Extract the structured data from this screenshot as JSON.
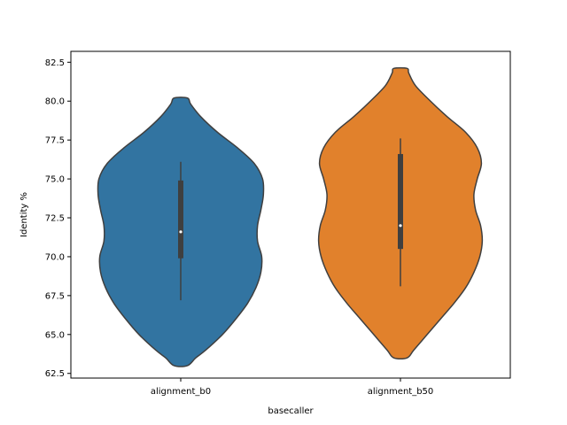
{
  "chart_data": {
    "type": "violin",
    "title": "",
    "xlabel": "basecaller",
    "ylabel": "Identity %",
    "ylim": [
      62.2,
      83.2
    ],
    "yticks": [
      62.5,
      65.0,
      67.5,
      70.0,
      72.5,
      75.0,
      77.5,
      80.0,
      82.5
    ],
    "ytick_labels": [
      "62.5",
      "65.0",
      "67.5",
      "70.0",
      "72.5",
      "75.0",
      "77.5",
      "80.0",
      "82.5"
    ],
    "categories": [
      "alignment_b0",
      "alignment_b50"
    ],
    "grid": false,
    "legend": "none",
    "colors": {
      "alignment_b0": "#3274a1",
      "alignment_b50": "#e1812c",
      "edge": "#3f3f3f",
      "inner_box": "#3f3f3f",
      "median": "#ffffff"
    },
    "violins": [
      {
        "name": "alignment_b0",
        "min": 63.0,
        "max": 80.2,
        "q1": 69.9,
        "median": 71.6,
        "q3": 74.9,
        "whisker_low": 67.2,
        "whisker_high": 76.1,
        "density_profile": [
          [
            63.0,
            0.08
          ],
          [
            63.5,
            0.18
          ],
          [
            64.0,
            0.3
          ],
          [
            65.0,
            0.5
          ],
          [
            66.0,
            0.66
          ],
          [
            67.0,
            0.8
          ],
          [
            68.0,
            0.9
          ],
          [
            69.0,
            0.96
          ],
          [
            70.0,
            0.97
          ],
          [
            71.0,
            0.92
          ],
          [
            72.0,
            0.92
          ],
          [
            73.0,
            0.96
          ],
          [
            74.0,
            0.99
          ],
          [
            75.0,
            0.98
          ],
          [
            76.0,
            0.88
          ],
          [
            77.0,
            0.68
          ],
          [
            78.0,
            0.44
          ],
          [
            79.0,
            0.24
          ],
          [
            79.8,
            0.12
          ],
          [
            80.2,
            0.08
          ]
        ]
      },
      {
        "name": "alignment_b50",
        "min": 63.5,
        "max": 82.1,
        "q1": 70.5,
        "median": 72.0,
        "q3": 76.6,
        "whisker_low": 68.1,
        "whisker_high": 77.6,
        "density_profile": [
          [
            63.5,
            0.08
          ],
          [
            64.0,
            0.16
          ],
          [
            65.0,
            0.32
          ],
          [
            66.0,
            0.48
          ],
          [
            67.0,
            0.64
          ],
          [
            68.0,
            0.78
          ],
          [
            69.0,
            0.88
          ],
          [
            70.0,
            0.95
          ],
          [
            71.0,
            0.98
          ],
          [
            72.0,
            0.96
          ],
          [
            73.0,
            0.9
          ],
          [
            74.0,
            0.88
          ],
          [
            75.0,
            0.92
          ],
          [
            76.0,
            0.97
          ],
          [
            77.0,
            0.92
          ],
          [
            78.0,
            0.78
          ],
          [
            79.0,
            0.56
          ],
          [
            80.0,
            0.36
          ],
          [
            81.0,
            0.18
          ],
          [
            81.8,
            0.1
          ],
          [
            82.1,
            0.08
          ]
        ]
      }
    ]
  }
}
